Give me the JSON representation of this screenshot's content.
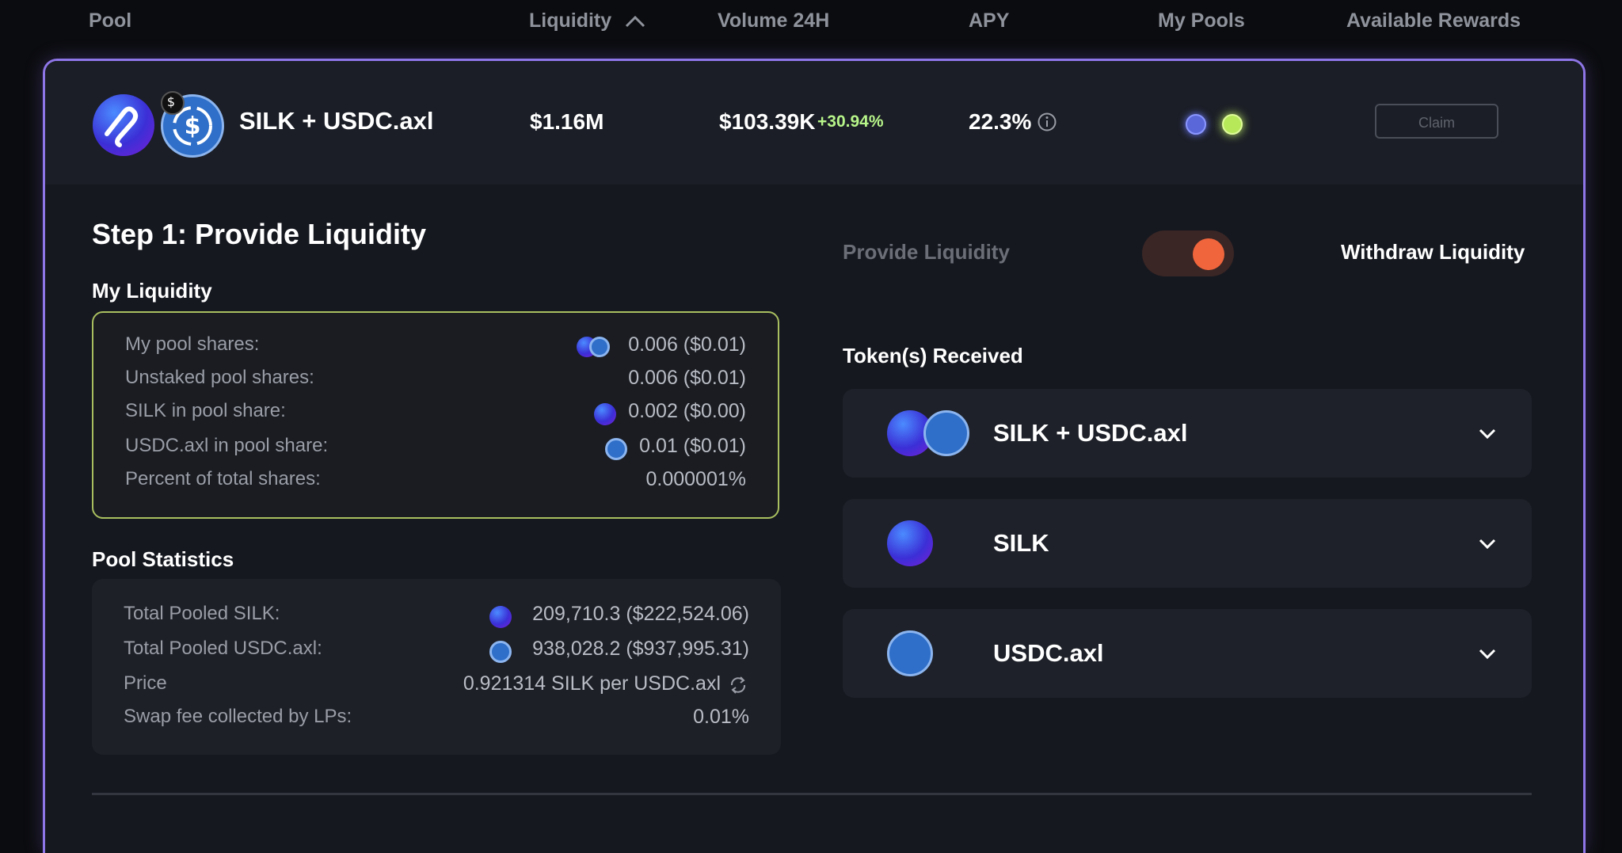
{
  "header": {
    "pool": "Pool",
    "liquidity": "Liquidity",
    "volume": "Volume 24H",
    "apy": "APY",
    "my_pools": "My Pools",
    "rewards": "Available Rewards"
  },
  "pool_row": {
    "name": "SILK + USDC.axl",
    "liquidity": "$1.16M",
    "volume": "$103.39K",
    "volume_change": "+30.94%",
    "apy": "22.3%",
    "claim_label": "Claim"
  },
  "step_title": "Step 1: Provide Liquidity",
  "my_liquidity": {
    "title": "My Liquidity",
    "rows": [
      {
        "label": "My pool shares:",
        "value": "0.006 ($0.01)"
      },
      {
        "label": "Unstaked pool shares:",
        "value": "0.006 ($0.01)"
      },
      {
        "label": "SILK in pool share:",
        "value": "0.002 ($0.00)"
      },
      {
        "label": "USDC.axl in pool share:",
        "value": "0.01 ($0.01)"
      },
      {
        "label": "Percent of total shares:",
        "value": "0.000001%"
      }
    ]
  },
  "pool_statistics": {
    "title": "Pool Statistics",
    "rows": [
      {
        "label": "Total Pooled SILK:",
        "value": "209,710.3 ($222,524.06)"
      },
      {
        "label": "Total Pooled USDC.axl:",
        "value": "938,028.2 ($937,995.31)"
      },
      {
        "label": "Price",
        "value": "0.921314 SILK per USDC.axl"
      },
      {
        "label": "Swap fee collected by LPs:",
        "value": "0.01%"
      }
    ]
  },
  "toggle": {
    "left_label": "Provide Liquidity",
    "right_label": "Withdraw Liquidity",
    "state": "withdraw"
  },
  "tokens_received": {
    "title": "Token(s) Received",
    "items": [
      {
        "name": "SILK + USDC.axl"
      },
      {
        "name": "SILK"
      },
      {
        "name": "USDC.axl"
      }
    ]
  },
  "colors": {
    "accent_border": "#8f76e8",
    "positive": "#b7f58a",
    "toggle_knob": "#f0653c",
    "liquidity_box_border": "#a9bf5f"
  }
}
